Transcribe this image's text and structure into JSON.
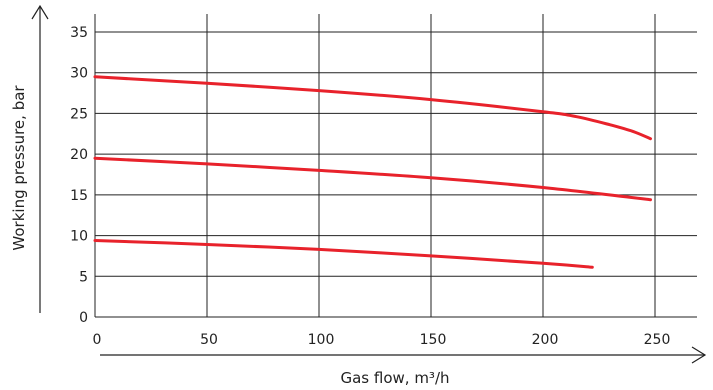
{
  "chart_data": {
    "type": "line",
    "title": "",
    "xlabel": "Gas flow, m³/h",
    "ylabel": "Working pressure, bar",
    "xlim": [
      0,
      265
    ],
    "ylim": [
      0,
      37
    ],
    "x_ticks": [
      "0",
      "50",
      "100",
      "150",
      "200",
      "250"
    ],
    "y_ticks": [
      "0",
      "5",
      "10",
      "15",
      "20",
      "25",
      "30",
      "35"
    ],
    "grid": true,
    "legend": "none",
    "series_color": "#e8222b",
    "series": [
      {
        "x": [
          0,
          50,
          100,
          150,
          200,
          215,
          230,
          240,
          248
        ],
        "y": [
          29.5,
          28.7,
          27.8,
          26.7,
          25.2,
          24.6,
          23.6,
          22.8,
          21.9
        ]
      },
      {
        "x": [
          0,
          50,
          100,
          150,
          200,
          248
        ],
        "y": [
          19.5,
          18.8,
          18.0,
          17.1,
          15.9,
          14.4
        ]
      },
      {
        "x": [
          0,
          50,
          100,
          150,
          200,
          222
        ],
        "y": [
          9.4,
          8.9,
          8.3,
          7.5,
          6.6,
          6.1
        ]
      }
    ]
  }
}
